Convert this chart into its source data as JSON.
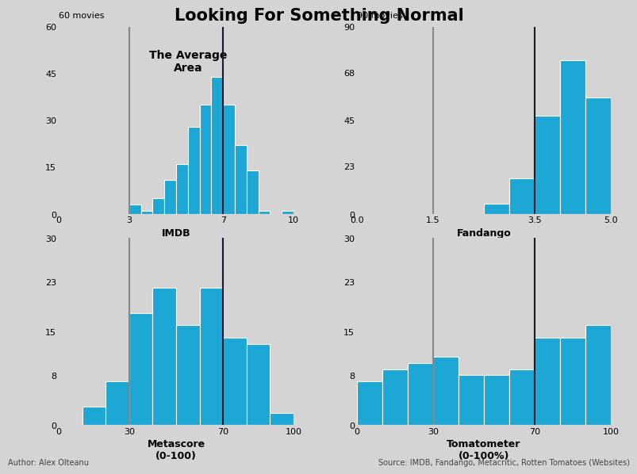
{
  "title": "Looking For Something Normal",
  "bg_color": "#d4d4d4",
  "bar_color": "#1da7d4",
  "avg_area_text": "The Average\nArea",
  "footer_left": "Author: Alex Olteanu",
  "footer_right": "Source: IMDB, Fandango, Metacritic, Rotten Tomatoes (Websites)",
  "subplots": [
    {
      "name": "IMDB",
      "xlabel": "IMDB\n(0-10)",
      "ylabel_text": "60 movies",
      "xlim": [
        0,
        10
      ],
      "ylim": [
        0,
        60
      ],
      "yticks": [
        0,
        15,
        30,
        45,
        60
      ],
      "xticks": [
        0,
        3,
        7,
        10
      ],
      "xticklabels": [
        "0",
        "3",
        "7",
        "10"
      ],
      "gray_lines": [
        3.0,
        7.0
      ],
      "dark_line": 7.0,
      "bin_edges": [
        3.0,
        3.5,
        4.0,
        4.5,
        5.0,
        5.5,
        6.0,
        6.5,
        7.0,
        7.5,
        8.0,
        8.5,
        9.0,
        9.5,
        10.0
      ],
      "bar_heights": [
        3,
        1,
        5,
        11,
        16,
        28,
        35,
        44,
        35,
        22,
        14,
        1,
        0,
        1
      ],
      "show_avg_area": true
    },
    {
      "name": "Fandango",
      "xlabel": "Fandango\n(0-5 stars)",
      "ylabel_text": "90 movies",
      "xlim": [
        0.0,
        5.0
      ],
      "ylim": [
        0,
        90
      ],
      "yticks": [
        0,
        23,
        45,
        68,
        90
      ],
      "xticks": [
        0.0,
        1.5,
        3.5,
        5.0
      ],
      "xticklabels": [
        "0.0",
        "1.5",
        "3.5",
        "5.0"
      ],
      "gray_lines": [
        1.5,
        3.5
      ],
      "dark_line": 3.5,
      "bin_edges": [
        2.5,
        3.0,
        3.5,
        4.0,
        4.5,
        5.0
      ],
      "bar_heights": [
        5,
        17,
        47,
        74,
        56
      ],
      "show_avg_area": false
    },
    {
      "name": "Metascore",
      "xlabel": "Metascore\n(0-100)",
      "ylabel_text": "",
      "xlim": [
        0,
        100
      ],
      "ylim": [
        0,
        30
      ],
      "yticks": [
        0,
        8,
        15,
        23,
        30
      ],
      "xticks": [
        0,
        30,
        70,
        100
      ],
      "xticklabels": [
        "0",
        "30",
        "70",
        "100"
      ],
      "gray_lines": [
        30,
        70
      ],
      "dark_line": 70,
      "bin_edges": [
        10,
        20,
        30,
        40,
        50,
        60,
        70,
        80,
        90,
        100
      ],
      "bar_heights": [
        3,
        7,
        18,
        22,
        16,
        22,
        14,
        13,
        2
      ],
      "show_avg_area": false
    },
    {
      "name": "Tomatometer",
      "xlabel": "Tomatometer\n(0-100%)",
      "ylabel_text": "",
      "xlim": [
        0,
        100
      ],
      "ylim": [
        0,
        30
      ],
      "yticks": [
        0,
        8,
        15,
        23,
        30
      ],
      "xticks": [
        0,
        30,
        70,
        100
      ],
      "xticklabels": [
        "0",
        "30",
        "70",
        "100"
      ],
      "gray_lines": [
        30,
        70
      ],
      "dark_line": 70,
      "bin_edges": [
        0,
        10,
        20,
        30,
        40,
        50,
        60,
        70,
        80,
        90,
        100
      ],
      "bar_heights": [
        7,
        9,
        10,
        11,
        8,
        8,
        9,
        14,
        14,
        16
      ],
      "show_avg_area": false
    }
  ]
}
